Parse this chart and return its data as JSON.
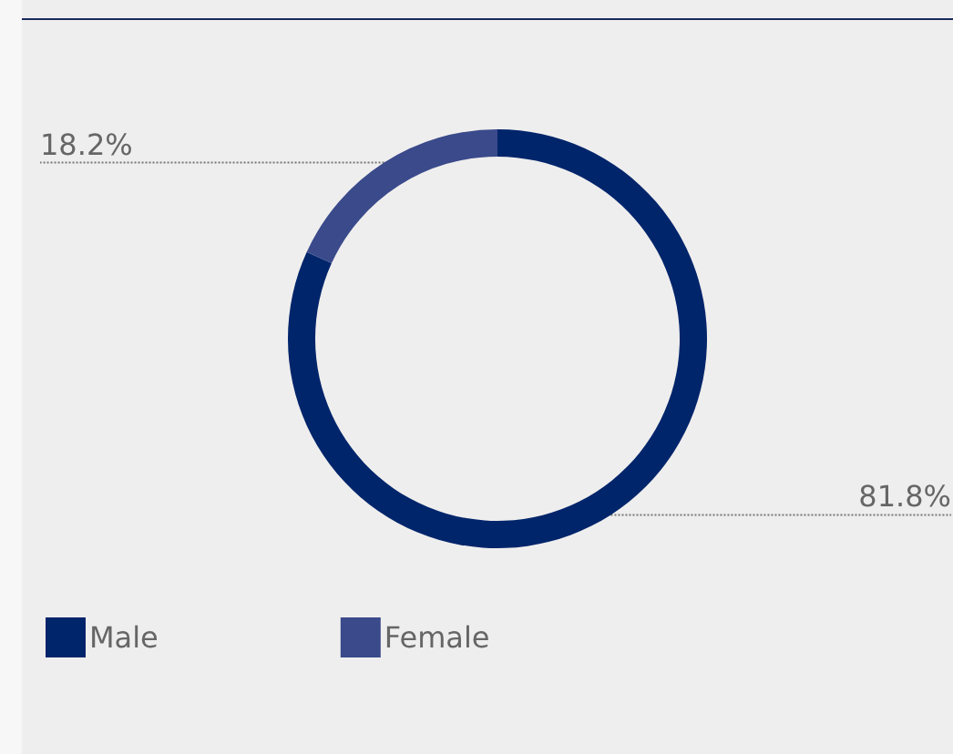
{
  "chart_data": {
    "type": "donut",
    "categories": [
      "Male",
      "Female"
    ],
    "values": [
      81.8,
      18.2
    ],
    "colors": [
      "#00256b",
      "#3a4a8b"
    ],
    "value_labels": [
      "81.8%",
      "18.2%"
    ],
    "legend": "bottom left"
  }
}
